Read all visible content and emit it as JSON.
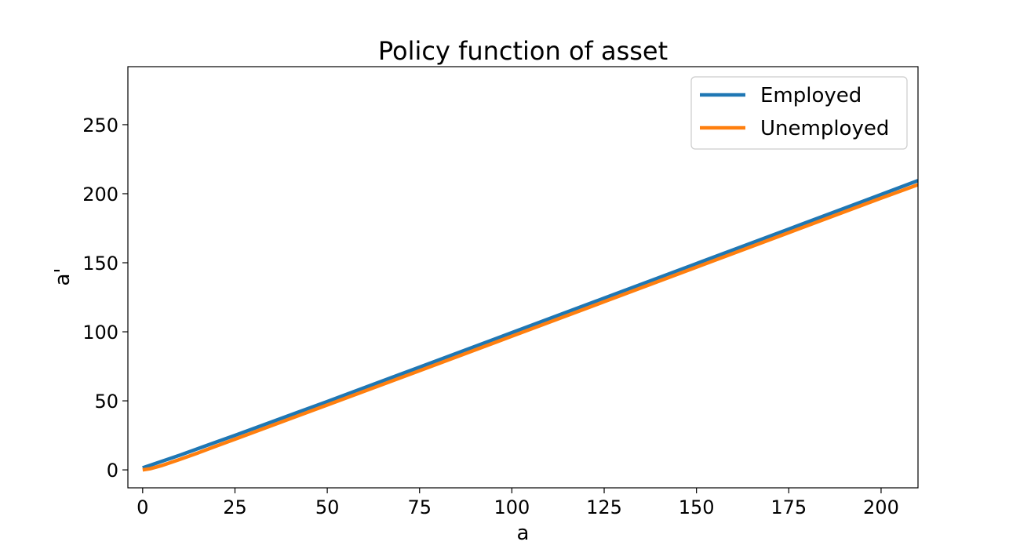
{
  "chart_data": {
    "type": "line",
    "title": "Policy function of asset",
    "xlabel": "a",
    "ylabel": "a'",
    "xlim": [
      -4,
      210
    ],
    "ylim": [
      -13,
      292
    ],
    "xticks": [
      0,
      25,
      50,
      75,
      100,
      125,
      150,
      175,
      200
    ],
    "yticks": [
      0,
      50,
      100,
      150,
      200,
      250
    ],
    "grid": false,
    "legend_position": "top-right",
    "series": [
      {
        "name": "Employed",
        "color": "#1f77b4",
        "x": [
          0,
          5,
          10,
          15,
          20,
          25,
          50,
          75,
          100,
          125,
          150,
          175,
          200,
          210
        ],
        "y": [
          1.5,
          6,
          10.6,
          15.4,
          20.2,
          25,
          49.5,
          74.4,
          99.4,
          124.4,
          149.4,
          174.4,
          199.4,
          209.5
        ]
      },
      {
        "name": "Unemployed",
        "color": "#ff7f0e",
        "x": [
          0,
          2,
          5,
          10,
          15,
          20,
          25,
          50,
          75,
          100,
          125,
          150,
          175,
          200,
          210
        ],
        "y": [
          0,
          0.8,
          3,
          7.5,
          12.3,
          17.3,
          22.2,
          47,
          71.8,
          96.8,
          121.8,
          146.8,
          171.8,
          196.8,
          206.5
        ]
      }
    ]
  }
}
